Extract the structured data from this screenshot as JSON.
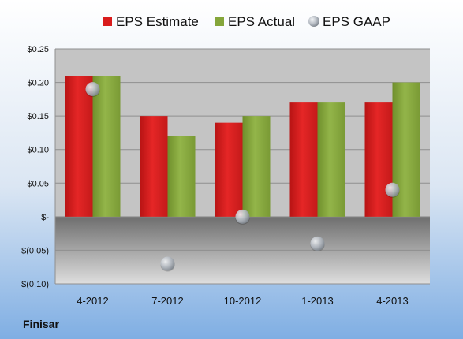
{
  "chart_data": {
    "type": "bar",
    "categories": [
      "4-2012",
      "7-2012",
      "10-2012",
      "1-2013",
      "4-2013"
    ],
    "series": [
      {
        "name": "EPS Estimate",
        "kind": "bar",
        "color": "#d91c1c",
        "values": [
          0.21,
          0.15,
          0.14,
          0.17,
          0.17
        ]
      },
      {
        "name": "EPS Actual",
        "kind": "bar",
        "color": "#85a63a",
        "values": [
          0.21,
          0.12,
          0.15,
          0.17,
          0.2
        ]
      },
      {
        "name": "EPS GAAP",
        "kind": "scatter",
        "color": "#b8bec6",
        "values": [
          0.19,
          -0.07,
          0.0,
          -0.04,
          0.04
        ]
      }
    ],
    "ylim": [
      -0.1,
      0.25
    ],
    "yticks": [
      {
        "value": 0.25,
        "label": "$0.25"
      },
      {
        "value": 0.2,
        "label": "$0.20"
      },
      {
        "value": 0.15,
        "label": "$0.15"
      },
      {
        "value": 0.1,
        "label": "$0.10"
      },
      {
        "value": 0.05,
        "label": "$0.05"
      },
      {
        "value": 0.0,
        "label": "$-"
      },
      {
        "value": -0.05,
        "label": "$(0.05)"
      },
      {
        "value": -0.1,
        "label": "$(0.10)"
      }
    ],
    "grid": true,
    "legend": "top",
    "company": "Finisar"
  }
}
